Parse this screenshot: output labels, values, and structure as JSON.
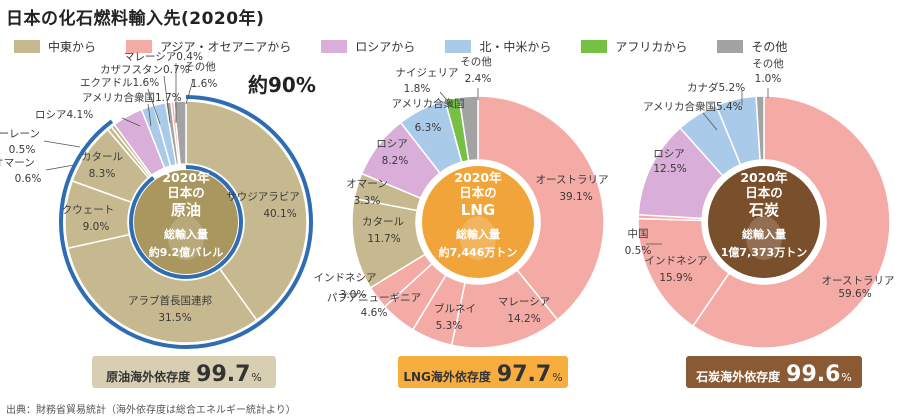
{
  "title": "日本の化石燃料輸入先(2020年)",
  "legend": [
    {
      "label": "中東から",
      "color": "#c7b98f"
    },
    {
      "label": "アジア・オセアニアから",
      "color": "#f4aaa5"
    },
    {
      "label": "ロシアから",
      "color": "#d9aed8"
    },
    {
      "label": "北・中米から",
      "color": "#a9cbe9"
    },
    {
      "label": "アフリカから",
      "color": "#76c043"
    },
    {
      "label": "その他",
      "color": "#a3a3a3"
    }
  ],
  "source": "出典：財務省貿易統計（海外依存度は総合エネルギー統計より）",
  "chart_data": [
    {
      "type": "pie",
      "center": [
        "2020年",
        "日本の",
        "原油",
        "総輸入量",
        "約9.2億バレル"
      ],
      "center_color": "#a9975f",
      "callout": "約90%",
      "badge": {
        "label": "原油海外依存度",
        "value": "99.7",
        "unit": "%",
        "bg": "#d8cfb3",
        "fg": "#333333"
      },
      "slices": [
        {
          "name": "サウジアラビア",
          "value": 40.1,
          "value_label": "40.1%",
          "color": "#c7b98f"
        },
        {
          "name": "アラブ首長国連邦",
          "value": 31.5,
          "value_label": "31.5%",
          "color": "#c7b98f"
        },
        {
          "name": "クウェート",
          "value": 9.0,
          "value_label": "9.0%",
          "color": "#c7b98f"
        },
        {
          "name": "カタール",
          "value": 8.3,
          "value_label": "8.3%",
          "color": "#c7b98f"
        },
        {
          "name": "オマーン",
          "value": 0.6,
          "value_label": "0.6%",
          "color": "#c7b98f"
        },
        {
          "name": "バーレーン",
          "value": 0.5,
          "value_label": "0.5%",
          "color": "#c7b98f"
        },
        {
          "name": "ロシア",
          "value": 4.1,
          "value_label": "4.1%",
          "color": "#d9aed8"
        },
        {
          "name": "アメリカ合衆国",
          "value": 1.7,
          "value_label": "1.7%",
          "color": "#a9cbe9"
        },
        {
          "name": "エクアドル",
          "value": 1.6,
          "value_label": "1.6%",
          "color": "#a9cbe9"
        },
        {
          "name": "カザフスタン",
          "value": 0.7,
          "value_label": "0.7%",
          "color": "#a3a3a3"
        },
        {
          "name": "マレーシア",
          "value": 0.4,
          "value_label": "0.4%",
          "color": "#f4aaa5"
        },
        {
          "name": "その他",
          "value": 1.6,
          "value_label": "1.6%",
          "color": "#a3a3a3"
        }
      ]
    },
    {
      "type": "pie",
      "center": [
        "2020年",
        "日本の",
        "LNG",
        "総輸入量",
        "約7,446万トン"
      ],
      "center_color": "#f0a43a",
      "badge": {
        "label": "LNG海外依存度",
        "value": "97.7",
        "unit": "%",
        "bg": "#f7ae3f",
        "fg": "#333333"
      },
      "slices": [
        {
          "name": "オーストラリア",
          "value": 39.1,
          "value_label": "39.1%",
          "color": "#f4aaa5"
        },
        {
          "name": "マレーシア",
          "value": 14.2,
          "value_label": "14.2%",
          "color": "#f4aaa5"
        },
        {
          "name": "ブルネイ",
          "value": 5.3,
          "value_label": "5.3%",
          "color": "#f4aaa5"
        },
        {
          "name": "パプアニューギニア",
          "value": 4.6,
          "value_label": "4.6%",
          "color": "#f4aaa5"
        },
        {
          "name": "インドネシア",
          "value": 3.0,
          "value_label": "3.0%",
          "color": "#f4aaa5"
        },
        {
          "name": "カタール",
          "value": 11.7,
          "value_label": "11.7%",
          "color": "#c7b98f"
        },
        {
          "name": "オマーン",
          "value": 3.3,
          "value_label": "3.3%",
          "color": "#c7b98f"
        },
        {
          "name": "ロシア",
          "value": 8.2,
          "value_label": "8.2%",
          "color": "#d9aed8"
        },
        {
          "name": "アメリカ合衆国",
          "value": 6.3,
          "value_label": "6.3%",
          "color": "#a9cbe9"
        },
        {
          "name": "ナイジェリア",
          "value": 1.8,
          "value_label": "1.8%",
          "color": "#76c043"
        },
        {
          "name": "その他",
          "value": 2.4,
          "value_label": "2.4%",
          "color": "#a3a3a3"
        }
      ]
    },
    {
      "type": "pie",
      "center": [
        "2020年",
        "日本の",
        "石炭",
        "総輸入量",
        "1億7,373万トン"
      ],
      "center_color": "#7a4f2c",
      "badge": {
        "label": "石炭海外依存度",
        "value": "99.6",
        "unit": "%",
        "bg": "#8a5a34",
        "fg": "#ffffff"
      },
      "slices": [
        {
          "name": "オーストラリア",
          "value": 59.6,
          "value_label": "59.6%",
          "color": "#f4aaa5"
        },
        {
          "name": "インドネシア",
          "value": 15.9,
          "value_label": "15.9%",
          "color": "#f4aaa5"
        },
        {
          "name": "中国",
          "value": 0.5,
          "value_label": "0.5%",
          "color": "#f4aaa5"
        },
        {
          "name": "ロシア",
          "value": 12.5,
          "value_label": "12.5%",
          "color": "#d9aed8"
        },
        {
          "name": "アメリカ合衆国",
          "value": 5.4,
          "value_label": "5.4%",
          "color": "#a9cbe9"
        },
        {
          "name": "カナダ",
          "value": 5.2,
          "value_label": "5.2%",
          "color": "#a9cbe9"
        },
        {
          "name": "その他",
          "value": 1.0,
          "value_label": "1.0%",
          "color": "#a3a3a3"
        }
      ]
    }
  ]
}
